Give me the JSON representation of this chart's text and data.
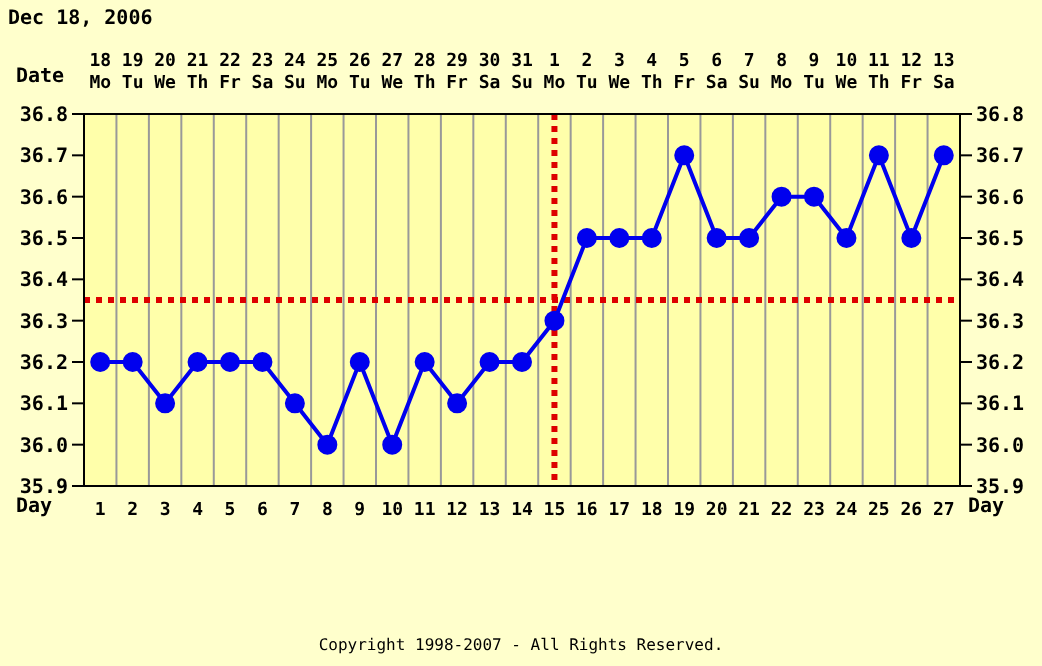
{
  "chart_data": {
    "type": "line",
    "title": "Dec 18, 2006",
    "xlabel": "Date",
    "x2label": "Day",
    "categories": [
      "18 Mo",
      "19 Tu",
      "20 We",
      "21 Th",
      "22 Fr",
      "23 Sa",
      "24 Su",
      "25 Mo",
      "26 Tu",
      "27 We",
      "28 Th",
      "29 Fr",
      "30 Sa",
      "31 Su",
      "1 Mo",
      "2 Tu",
      "3 We",
      "4 Th",
      "5 Fr",
      "6 Sa",
      "7 Su",
      "8 Mo",
      "9 Tu",
      "10 We",
      "11 Th",
      "12 Fr",
      "13 Sa"
    ],
    "series": [
      {
        "color": "#0000ee",
        "values": [
          36.2,
          36.2,
          36.1,
          36.2,
          36.2,
          36.2,
          36.1,
          36.0,
          36.2,
          36.0,
          36.2,
          36.1,
          36.2,
          36.2,
          36.3,
          36.5,
          36.5,
          36.5,
          36.7,
          36.5,
          36.5,
          36.6,
          36.6,
          36.5,
          36.7,
          36.5,
          36.7
        ]
      }
    ],
    "ylim": [
      35.9,
      36.8
    ],
    "yticks": [
      35.9,
      {
        "value": 36,
        "label": "36.0"
      },
      36.1,
      36.2,
      36.3,
      36.4,
      36.5,
      36.6,
      36.7,
      36.8
    ],
    "y2lim": [
      35.9,
      36.8
    ],
    "y2ticks": [
      35.9,
      {
        "value": 36,
        "label": "36.0"
      },
      36.1,
      36.2,
      36.3,
      36.4,
      36.5,
      36.6,
      36.7,
      36.8
    ],
    "x2lim": [
      0.5,
      27.5
    ],
    "x2ticks": [
      1,
      2,
      3,
      4,
      5,
      6,
      7,
      8,
      9,
      10,
      11,
      12,
      13,
      14,
      15,
      16,
      17,
      18,
      19,
      20,
      21,
      22,
      23,
      24,
      25,
      26,
      27
    ],
    "ref_lines": [
      {
        "axis": "y",
        "value": 36.35,
        "color": "#dd0000",
        "line_style": "dotted"
      },
      {
        "axis": "x",
        "value": "1 Mo",
        "color": "#dd0000",
        "line_style": "dotted"
      }
    ],
    "annotations": [
      "Copyright 1998-2007 - All Rights Reserved."
    ],
    "grid": true,
    "marker": "circle",
    "line_style": "solid"
  }
}
